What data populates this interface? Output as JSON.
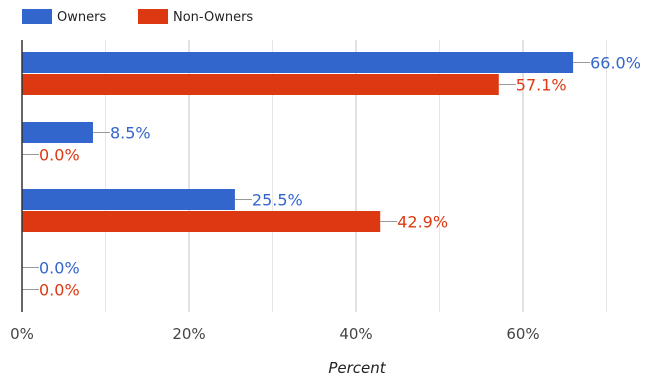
{
  "chart_data": {
    "type": "bar",
    "orientation": "horizontal",
    "xlabel": "Percent",
    "xlim": [
      0,
      70
    ],
    "x_ticks": [
      0,
      20,
      40,
      60
    ],
    "x_tick_labels": [
      "0%",
      "20%",
      "40%",
      "60%"
    ],
    "grid": true,
    "legend_position": "top-left",
    "categories": [
      "",
      "",
      "",
      ""
    ],
    "series": [
      {
        "name": "Owners",
        "color": "#3366cc",
        "values": [
          66.0,
          8.5,
          25.5,
          0.0
        ],
        "labels": [
          "66.0%",
          "8.5%",
          "25.5%",
          "0.0%"
        ]
      },
      {
        "name": "Non-Owners",
        "color": "#dc3912",
        "values": [
          57.1,
          0.0,
          42.9,
          0.0
        ],
        "labels": [
          "57.1%",
          "0.0%",
          "42.9%",
          "0.0%"
        ]
      }
    ]
  }
}
